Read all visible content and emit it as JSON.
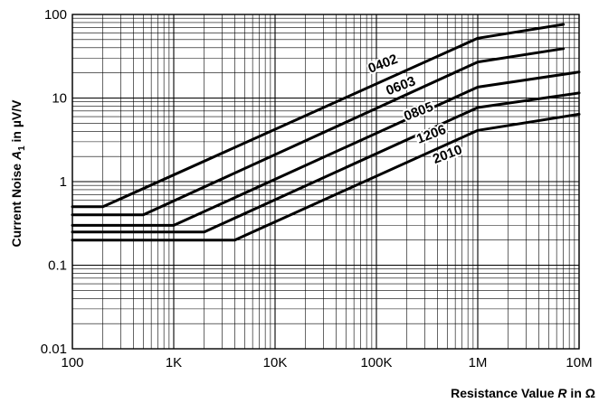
{
  "chart_data": {
    "type": "line",
    "xscale": "log",
    "yscale": "log",
    "xlim": [
      100,
      10000000
    ],
    "ylim": [
      0.01,
      100
    ],
    "grid": true,
    "xticks": [
      "100",
      "1K",
      "10K",
      "100K",
      "1M",
      "10M"
    ],
    "yticks": [
      "0.01",
      "0.1",
      "1",
      "10",
      "100"
    ],
    "xlabel": {
      "pre": "Resistance Value ",
      "var": "R",
      "post": " in Ω"
    },
    "ylabel": {
      "pre": "Current Noise ",
      "var": "A",
      "sub": "1",
      "post": " in µV/V"
    },
    "series": [
      {
        "name": "0402",
        "points": [
          [
            100,
            0.5
          ],
          [
            200,
            0.5
          ],
          [
            1000000,
            52
          ],
          [
            7000000,
            76
          ]
        ]
      },
      {
        "name": "0603",
        "points": [
          [
            100,
            0.4
          ],
          [
            500,
            0.4
          ],
          [
            1000000,
            27
          ],
          [
            7000000,
            39
          ]
        ]
      },
      {
        "name": "0805",
        "points": [
          [
            100,
            0.3
          ],
          [
            1000,
            0.3
          ],
          [
            1000000,
            13.5
          ],
          [
            10000000,
            20.5
          ]
        ]
      },
      {
        "name": "1206",
        "points": [
          [
            100,
            0.25
          ],
          [
            2000,
            0.25
          ],
          [
            1000000,
            7.7
          ],
          [
            10000000,
            11.5
          ]
        ]
      },
      {
        "name": "2010",
        "points": [
          [
            100,
            0.2
          ],
          [
            4000,
            0.2
          ],
          [
            1000000,
            4.1
          ],
          [
            10000000,
            6.4
          ]
        ]
      }
    ],
    "labels": [
      {
        "text": "0402",
        "x": 120000,
        "y": 23
      },
      {
        "text": "0603",
        "x": 180000,
        "y": 12.5
      },
      {
        "text": "0805",
        "x": 270000,
        "y": 6.2
      },
      {
        "text": "1206",
        "x": 360000,
        "y": 3.3
      },
      {
        "text": "2010",
        "x": 520000,
        "y": 1.9
      }
    ]
  }
}
